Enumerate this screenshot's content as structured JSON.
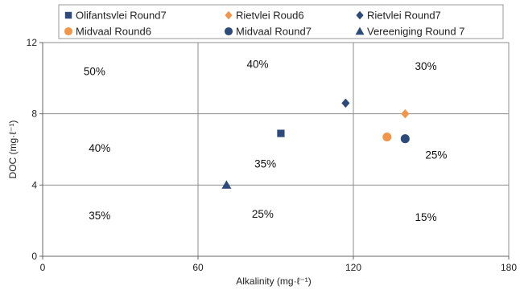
{
  "chart_data": {
    "type": "scatter",
    "xlabel": "Alkalinity (mg·ℓ⁻¹)",
    "ylabel": "DOC (mg·ℓ⁻¹)",
    "xlim": [
      0,
      180
    ],
    "ylim": [
      0,
      12
    ],
    "xticks": [
      0,
      60,
      120,
      180
    ],
    "yticks": [
      0,
      4,
      8,
      12
    ],
    "x_tick_labels": [
      "0",
      "60",
      "120",
      "180"
    ],
    "y_tick_labels": [
      "0",
      "4",
      "8",
      "12"
    ],
    "grid": true,
    "legend_position": "top",
    "series": [
      {
        "name": "Olifantsvlei Round7",
        "marker": "square",
        "color": "#2e4a7a",
        "points": [
          {
            "x": 92,
            "y": 6.9
          }
        ]
      },
      {
        "name": "Rietvlei Roud6",
        "marker": "diamond",
        "color": "#f0954a",
        "points": [
          {
            "x": 140,
            "y": 8.0
          }
        ]
      },
      {
        "name": "Rietvlei Round7",
        "marker": "diamond",
        "color": "#2e4a7a",
        "points": [
          {
            "x": 117,
            "y": 8.6
          }
        ]
      },
      {
        "name": "Midvaal Round6",
        "marker": "circle",
        "color": "#f0954a",
        "points": [
          {
            "x": 133,
            "y": 6.7
          }
        ]
      },
      {
        "name": "Midvaal Round7",
        "marker": "circle",
        "color": "#2e4a7a",
        "points": [
          {
            "x": 140,
            "y": 6.6
          }
        ]
      },
      {
        "name": "Vereeniging Round 7",
        "marker": "triangle",
        "color": "#2e4a7a",
        "points": [
          {
            "x": 71,
            "y": 4.0
          }
        ]
      }
    ],
    "annotations": [
      {
        "text": "50%",
        "x": 20,
        "y": 10.4
      },
      {
        "text": "40%",
        "x": 83,
        "y": 10.8
      },
      {
        "text": "30%",
        "x": 148,
        "y": 10.7
      },
      {
        "text": "40%",
        "x": 22,
        "y": 6.1
      },
      {
        "text": "35%",
        "x": 86,
        "y": 5.2
      },
      {
        "text": "25%",
        "x": 152,
        "y": 5.7
      },
      {
        "text": "35%",
        "x": 22,
        "y": 2.3
      },
      {
        "text": "25%",
        "x": 85,
        "y": 2.4
      },
      {
        "text": "15%",
        "x": 148,
        "y": 2.2
      }
    ]
  }
}
